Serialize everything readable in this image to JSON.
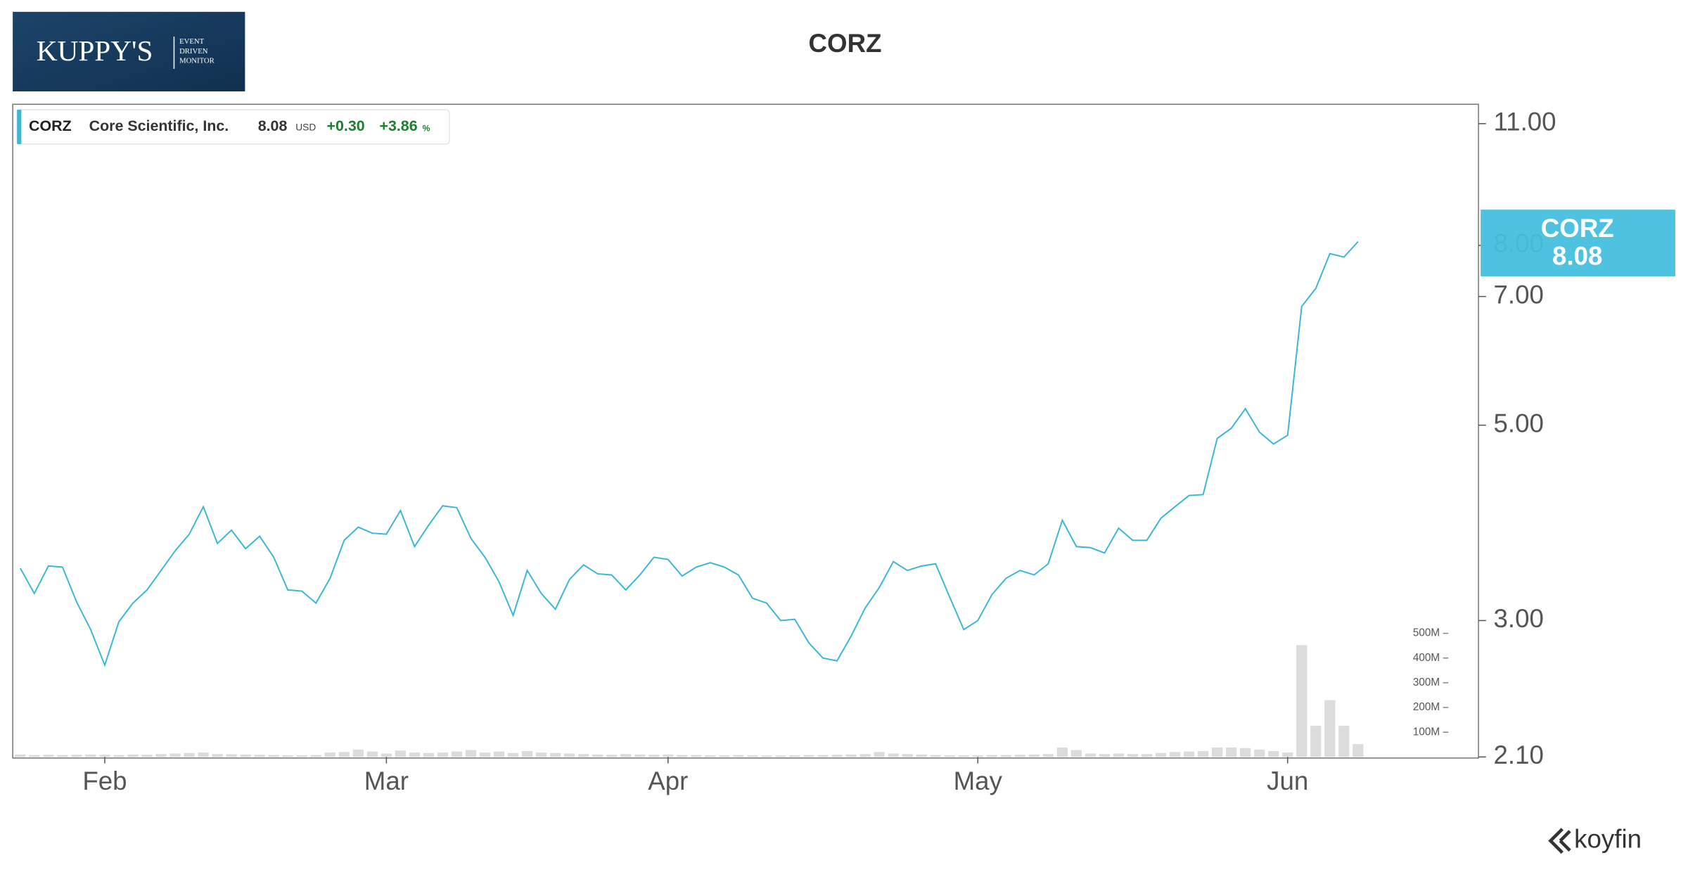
{
  "logo": {
    "name": "KUPPY'S",
    "tagline": [
      "EVENT",
      "DRIVEN",
      "MONITOR"
    ]
  },
  "brand": "koyfin",
  "chart_data": {
    "type": "line",
    "title": "CORZ",
    "company": "Core Scientific, Inc.",
    "quote": {
      "currency": "USD",
      "change": "+0.30",
      "change_pct": "+3.86",
      "pct_unit": "%"
    },
    "categories": [
      null,
      null,
      null,
      null,
      null,
      null,
      "Feb",
      null,
      null,
      null,
      null,
      null,
      null,
      null,
      null,
      null,
      null,
      null,
      null,
      null,
      null,
      null,
      null,
      null,
      null,
      null,
      "Mar",
      null,
      null,
      null,
      null,
      null,
      null,
      null,
      null,
      null,
      null,
      null,
      null,
      null,
      null,
      null,
      null,
      null,
      null,
      null,
      "Apr",
      null,
      null,
      null,
      null,
      null,
      null,
      null,
      null,
      null,
      null,
      null,
      null,
      null,
      null,
      null,
      null,
      null,
      null,
      null,
      null,
      null,
      "May",
      null,
      null,
      null,
      null,
      null,
      null,
      null,
      null,
      null,
      null,
      null,
      null,
      null,
      null,
      null,
      null,
      null,
      null,
      null,
      null,
      null,
      "Jun",
      null,
      null,
      null,
      null,
      null
    ],
    "series": [
      {
        "name": "CORZ",
        "color": "#3ab6d6",
        "values": [
          3.44,
          3.22,
          3.46,
          3.45,
          3.15,
          2.93,
          2.67,
          2.99,
          3.14,
          3.25,
          3.42,
          3.6,
          3.76,
          4.04,
          3.67,
          3.8,
          3.62,
          3.74,
          3.54,
          3.25,
          3.24,
          3.14,
          3.35,
          3.7,
          3.83,
          3.77,
          3.76,
          4.0,
          3.64,
          3.85,
          4.05,
          4.03,
          3.72,
          3.54,
          3.32,
          3.04,
          3.42,
          3.22,
          3.09,
          3.34,
          3.47,
          3.39,
          3.38,
          3.25,
          3.38,
          3.54,
          3.52,
          3.37,
          3.45,
          3.49,
          3.45,
          3.38,
          3.18,
          3.14,
          3.0,
          3.01,
          2.83,
          2.72,
          2.7,
          2.88,
          3.1,
          3.27,
          3.5,
          3.42,
          3.46,
          3.48,
          3.19,
          2.93,
          3.0,
          3.21,
          3.35,
          3.42,
          3.38,
          3.48,
          3.9,
          3.64,
          3.63,
          3.58,
          3.82,
          3.7,
          3.7,
          3.92,
          4.04,
          4.16,
          4.17,
          4.83,
          4.96,
          5.22,
          4.91,
          4.76,
          4.87,
          6.82,
          7.15,
          7.83,
          7.76,
          8.08
        ]
      },
      {
        "name": "Volume",
        "type": "bar",
        "axis": "y2",
        "color": "#dcdcdc",
        "values": [
          10000000,
          8000000,
          9000000,
          8000000,
          9000000,
          10000000,
          9000000,
          8000000,
          10000000,
          9000000,
          12000000,
          14000000,
          16000000,
          18000000,
          12000000,
          11000000,
          10000000,
          9000000,
          8000000,
          7000000,
          7000000,
          8000000,
          18000000,
          20000000,
          30000000,
          22000000,
          14000000,
          26000000,
          18000000,
          16000000,
          18000000,
          22000000,
          28000000,
          18000000,
          22000000,
          16000000,
          24000000,
          18000000,
          16000000,
          14000000,
          12000000,
          10000000,
          9000000,
          12000000,
          10000000,
          9000000,
          10000000,
          8000000,
          8000000,
          7000000,
          7000000,
          8000000,
          7000000,
          6000000,
          6000000,
          7000000,
          8000000,
          8000000,
          9000000,
          10000000,
          12000000,
          20000000,
          14000000,
          12000000,
          10000000,
          8000000,
          7000000,
          7000000,
          7000000,
          8000000,
          8000000,
          9000000,
          10000000,
          12000000,
          38000000,
          28000000,
          14000000,
          12000000,
          14000000,
          12000000,
          12000000,
          16000000,
          20000000,
          22000000,
          24000000,
          38000000,
          38000000,
          36000000,
          30000000,
          24000000,
          18000000,
          452000000,
          126000000,
          230000000,
          126000000,
          52000000
        ]
      }
    ],
    "ylog": true,
    "ylim": [
      2.1,
      11
    ],
    "yticks": [
      {
        "value": 11,
        "label": "11.00"
      },
      {
        "value": 8,
        "label": "8.00"
      },
      {
        "value": 7,
        "label": "7.00"
      },
      {
        "value": 5,
        "label": "5.00"
      },
      {
        "value": 3,
        "label": "3.00"
      },
      {
        "value": 2.1,
        "label": "2.10"
      }
    ],
    "y2lim": [
      0,
      500000000
    ],
    "y2ticks": [
      {
        "value": 500000000,
        "label": "500M"
      },
      {
        "value": 400000000,
        "label": "400M"
      },
      {
        "value": 300000000,
        "label": "300M"
      },
      {
        "value": 200000000,
        "label": "200M"
      },
      {
        "value": 100000000,
        "label": "100M"
      }
    ],
    "grid": false
  }
}
